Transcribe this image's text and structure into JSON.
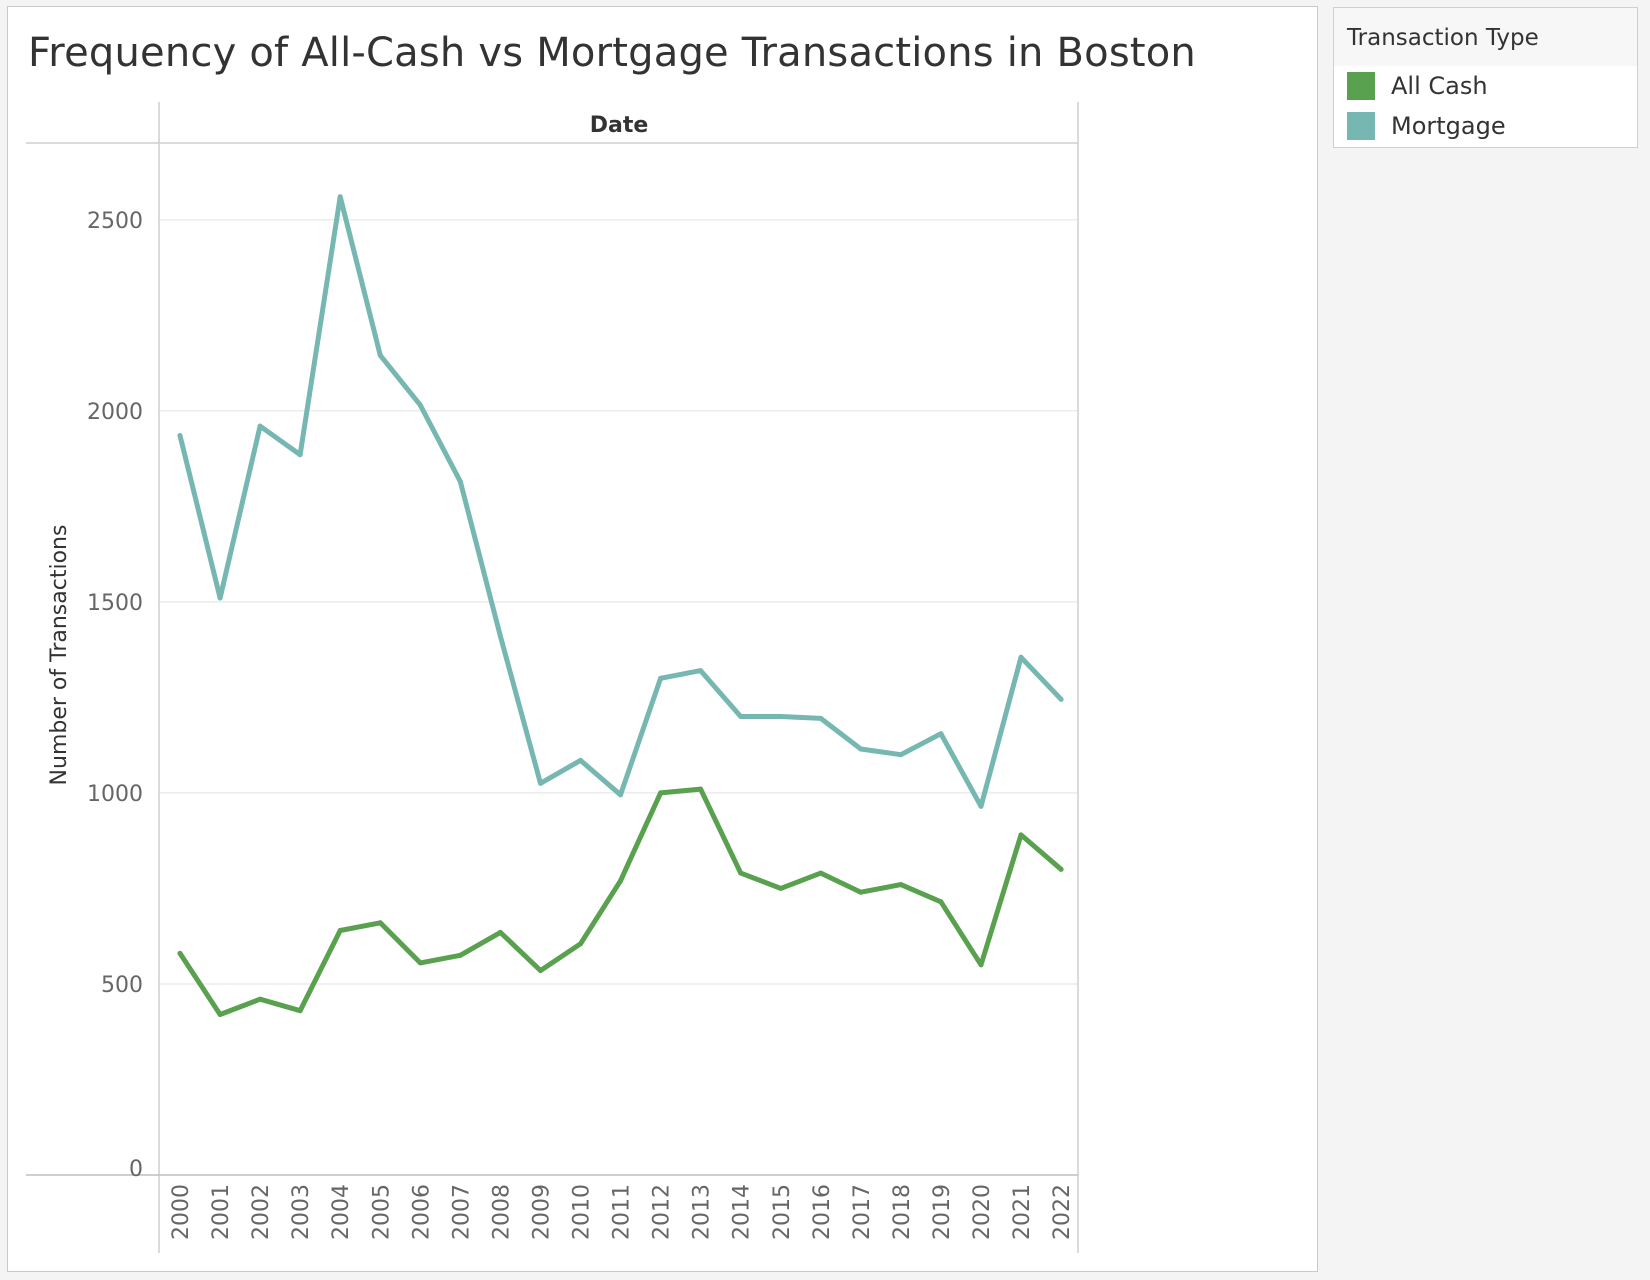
{
  "title": "Frequency of All-Cash vs Mortgage Transactions in Boston",
  "legend": {
    "title": "Transaction Type",
    "items": [
      {
        "label": "All Cash",
        "color": "#59a14f"
      },
      {
        "label": "Mortgage",
        "color": "#76b7b2"
      }
    ]
  },
  "chart_data": {
    "type": "line",
    "title": "Frequency of All-Cash vs Mortgage Transactions in Boston",
    "column_header": "Date",
    "xlabel": "",
    "ylabel": "Number of Transactions",
    "x": [
      "2000",
      "2001",
      "2002",
      "2003",
      "2004",
      "2005",
      "2006",
      "2007",
      "2008",
      "2009",
      "2010",
      "2011",
      "2012",
      "2013",
      "2014",
      "2015",
      "2016",
      "2017",
      "2018",
      "2019",
      "2020",
      "2021",
      "2022"
    ],
    "yticks": [
      0,
      500,
      1000,
      1500,
      2000,
      2500
    ],
    "ylim": [
      0,
      2700
    ],
    "grid": true,
    "legend_position": "top-right",
    "series": [
      {
        "name": "All Cash",
        "color": "#59a14f",
        "values": [
          580,
          420,
          460,
          430,
          640,
          660,
          555,
          575,
          635,
          535,
          605,
          770,
          1000,
          1010,
          790,
          750,
          790,
          740,
          760,
          715,
          550,
          890,
          800
        ]
      },
      {
        "name": "Mortgage",
        "color": "#76b7b2",
        "values": [
          1935,
          1510,
          1960,
          1885,
          2560,
          2145,
          2015,
          1815,
          1410,
          1025,
          1085,
          995,
          1300,
          1320,
          1200,
          1200,
          1195,
          1115,
          1100,
          1155,
          965,
          1355,
          1245
        ]
      }
    ]
  }
}
